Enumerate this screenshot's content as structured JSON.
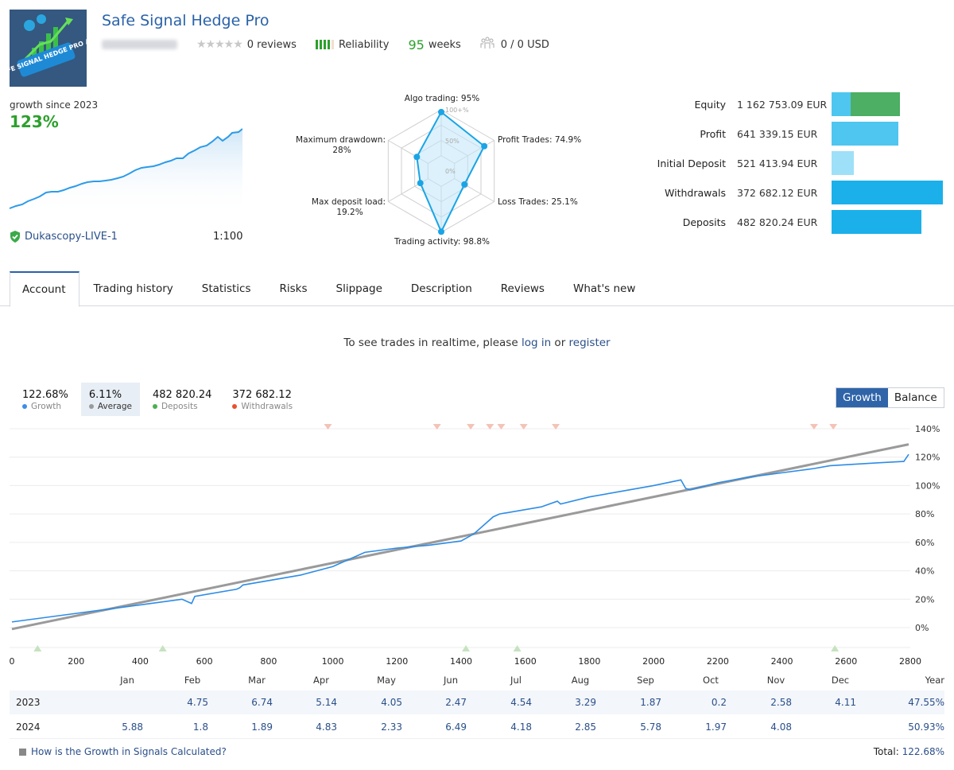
{
  "header": {
    "title": "Safe Signal Hedge Pro",
    "logo_text": "SAFE SIGNAL HEDGE PRO AI",
    "stars_glyph": "★★★★★",
    "reviews": "0 reviews",
    "reliability_label": "Reliability",
    "reliability_level": 4,
    "reliability_max": 5,
    "weeks_value": "95",
    "weeks_label": "weeks",
    "subscribers": "0 / 0 USD"
  },
  "growth_summary": {
    "label": "growth since 2023",
    "value": "123%",
    "broker": "Dukascopy-LIVE-1",
    "leverage": "1:100"
  },
  "radar": {
    "scale_labels": [
      "100+%",
      "50%",
      "0%"
    ],
    "axes": [
      {
        "label": "Algo trading: 95%",
        "value": 95
      },
      {
        "label": "Profit Trades: 74.9%",
        "value": 74.9
      },
      {
        "label": "Loss Trades: 25.1%",
        "value": 25.1
      },
      {
        "label": "Trading activity: 98.8%",
        "value": 98.8
      },
      {
        "label_line1": "Max deposit load:",
        "label_line2": "19.2%",
        "value": 19.2
      },
      {
        "label_line1": "Maximum drawdown:",
        "label_line2": "28%",
        "value": 28
      }
    ]
  },
  "stats": [
    {
      "label": "Equity",
      "value": "1 162 753.09 EUR"
    },
    {
      "label": "Profit",
      "value": "641 339.15 EUR"
    },
    {
      "label": "Initial Deposit",
      "value": "521 413.94 EUR"
    },
    {
      "label": "Withdrawals",
      "value": "372 682.12 EUR"
    },
    {
      "label": "Deposits",
      "value": "482 820.24 EUR"
    }
  ],
  "colors": {
    "accent": "#2a62a8",
    "green": "#2ca02c",
    "growth_line": "#2d8ce6",
    "average_line": "#9a9a9a",
    "bar_light": "#4ec6f0",
    "bar_lighter": "#9ee0f8",
    "bar_dark": "#1bb0ea",
    "equity_green": "#4caf63",
    "deposit_marker": "#c5e3bf",
    "withdrawal_marker": "#f5c2b6"
  },
  "tabs": [
    {
      "label": "Account",
      "active": true
    },
    {
      "label": "Trading history"
    },
    {
      "label": "Statistics"
    },
    {
      "label": "Risks"
    },
    {
      "label": "Slippage"
    },
    {
      "label": "Description"
    },
    {
      "label": "Reviews"
    },
    {
      "label": "What's new"
    }
  ],
  "realtime": {
    "prefix": "To see trades in realtime, please ",
    "login": "log in",
    "middle": " or ",
    "register": "register"
  },
  "legend": [
    {
      "value": "122.68%",
      "name": "Growth",
      "color": "#3b8ee8"
    },
    {
      "value": "6.11%",
      "name": "Average",
      "color": "#9a9a9a",
      "active": true
    },
    {
      "value": "482 820.24",
      "name": "Deposits",
      "color": "#4caf50"
    },
    {
      "value": "372 682.12",
      "name": "Withdrawals",
      "color": "#e8502f"
    }
  ],
  "toggle": {
    "growth": "Growth",
    "balance": "Balance"
  },
  "chart_data": {
    "type": "line",
    "title": "",
    "xlabel": "",
    "ylabel": "",
    "xlim": [
      0,
      2800
    ],
    "ylim": [
      -5,
      142
    ],
    "x_ticks": [
      0,
      200,
      400,
      600,
      800,
      1000,
      1200,
      1400,
      1600,
      1800,
      2000,
      2200,
      2400,
      2600,
      2800
    ],
    "y_ticks": [
      0,
      20,
      40,
      60,
      80,
      100,
      120,
      140
    ],
    "y_tick_labels": [
      "0%",
      "20%",
      "40%",
      "60%",
      "80%",
      "100%",
      "120%",
      "140%"
    ],
    "grid": true,
    "series": [
      {
        "name": "Growth",
        "x": [
          0,
          100,
          200,
          300,
          400,
          530,
          560,
          570,
          700,
          710,
          720,
          900,
          1000,
          1100,
          1200,
          1300,
          1400,
          1440,
          1500,
          1520,
          1650,
          1700,
          1710,
          1800,
          1900,
          2000,
          2085,
          2100,
          2115,
          2200,
          2300,
          2400,
          2500,
          2550,
          2700,
          2780,
          2795
        ],
        "y": [
          4,
          7,
          10,
          13,
          16,
          20,
          17,
          22,
          27,
          28,
          30,
          37,
          43,
          53,
          56,
          58,
          61,
          66,
          78,
          80,
          85,
          89,
          87,
          92,
          96,
          100,
          104,
          98,
          97,
          102,
          106,
          109,
          112,
          114,
          116,
          117,
          122
        ]
      },
      {
        "name": "Average",
        "x": [
          0,
          2795
        ],
        "y": [
          -1,
          129
        ]
      }
    ],
    "deposit_markers_x": [
      80,
      470,
      1415,
      1575,
      2565
    ],
    "withdrawal_markers_x": [
      985,
      1325,
      1430,
      1490,
      1525,
      1595,
      1695,
      2500,
      2560
    ]
  },
  "monthly": {
    "months": [
      "Jan",
      "Feb",
      "Mar",
      "Apr",
      "May",
      "Jun",
      "Jul",
      "Aug",
      "Sep",
      "Oct",
      "Nov",
      "Dec"
    ],
    "year_col": "Year",
    "rows": [
      {
        "year": "2023",
        "values": [
          "",
          "4.75",
          "6.74",
          "5.14",
          "4.05",
          "2.47",
          "4.54",
          "3.29",
          "1.87",
          "0.2",
          "2.58",
          "4.11"
        ],
        "total": "47.55%"
      },
      {
        "year": "2024",
        "values": [
          "5.88",
          "1.8",
          "1.89",
          "4.83",
          "2.33",
          "6.49",
          "4.18",
          "2.85",
          "5.78",
          "1.97",
          "4.08",
          ""
        ],
        "total": "50.93%"
      }
    ],
    "help_link": "How is the Growth in Signals Calculated?",
    "total_label": "Total: ",
    "total_value": "122.68%"
  }
}
